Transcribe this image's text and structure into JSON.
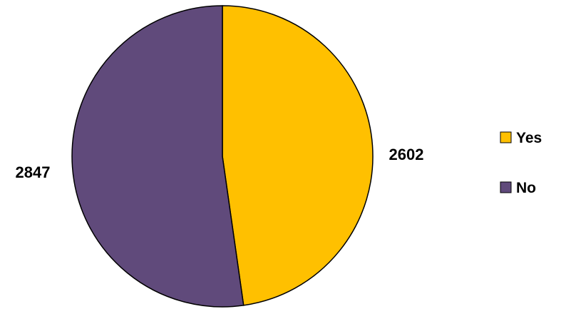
{
  "chart_data": {
    "type": "pie",
    "categories": [
      "Yes",
      "No"
    ],
    "values": [
      2602,
      2847
    ],
    "colors": [
      "#FFC000",
      "#604A7B"
    ],
    "stroke_color": "#000000",
    "data_labels": [
      "2602",
      "2847"
    ],
    "legend": {
      "placement": "right",
      "entries": [
        "Yes",
        "No"
      ]
    },
    "start_angle_deg": 0,
    "direction": "clockwise"
  }
}
